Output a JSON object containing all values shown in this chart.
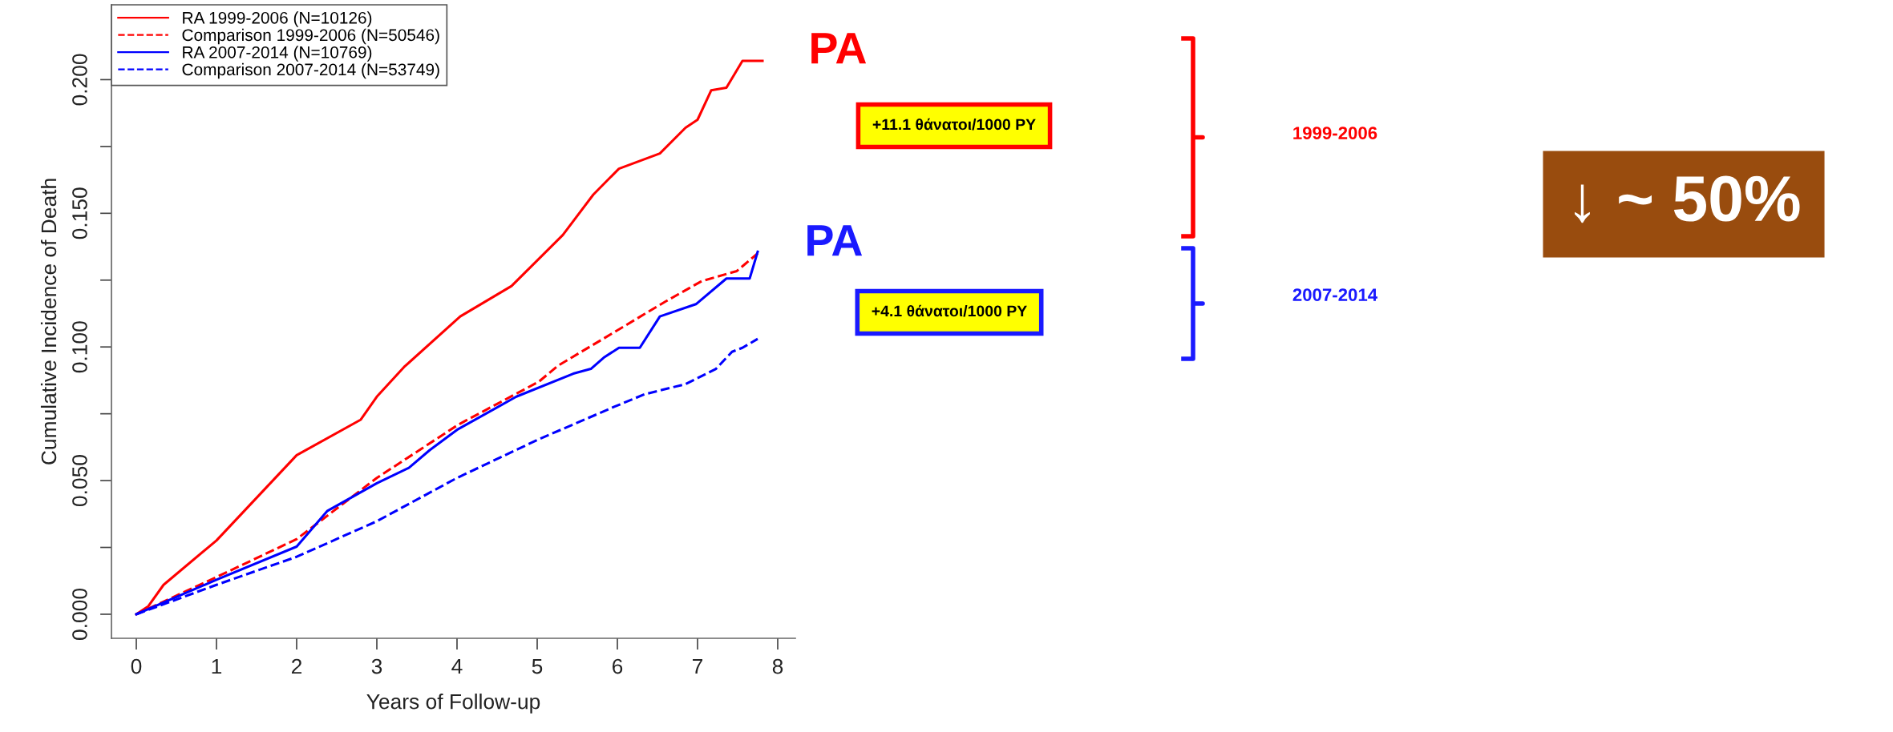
{
  "chart_data": {
    "type": "line",
    "xlabel": "Years of Follow-up",
    "ylabel": "Cumulative Incidence of Death",
    "xlim": [
      -0.31,
      8.22
    ],
    "ylim": [
      -0.009,
      0.228
    ],
    "xticks": [
      0,
      1,
      2,
      3,
      4,
      5,
      6,
      7,
      8
    ],
    "yticks": [
      {
        "value": 0,
        "label": "0.000"
      },
      {
        "value": 0.025,
        "label": null
      },
      {
        "value": 0.05,
        "label": "0.050"
      },
      {
        "value": 0.075,
        "label": null
      },
      {
        "value": 0.1,
        "label": "0.100"
      },
      {
        "value": 0.125,
        "label": null
      },
      {
        "value": 0.15,
        "label": "0.150"
      },
      {
        "value": 0.175,
        "label": null
      },
      {
        "value": 0.2,
        "label": "0.200"
      }
    ],
    "legend": "top left",
    "series": [
      {
        "name": "RA 1999-2006 (N=10126)",
        "color": "#ff0000",
        "line_style": "solid",
        "x": [
          0,
          0.15,
          0.34,
          1,
          2,
          2.8,
          3,
          3.34,
          4.04,
          4.68,
          5.32,
          5.7,
          6.02,
          6.53,
          6.85,
          7.0,
          7.17,
          7.36,
          7.56,
          7.81
        ],
        "values": [
          0,
          0.003,
          0.011,
          0.0276,
          0.0595,
          0.0728,
          0.0814,
          0.0925,
          0.1114,
          0.1228,
          0.1419,
          0.157,
          0.1667,
          0.1724,
          0.182,
          0.185,
          0.196,
          0.197,
          0.207,
          0.207
        ]
      },
      {
        "name": "Comparison 1999-2006 (N=50546)",
        "color": "#ff0000",
        "line_style": "dashed",
        "x": [
          0,
          1,
          2,
          3,
          4.02,
          5.02,
          5.26,
          5.96,
          6.6,
          7.05,
          7.49,
          7.75
        ],
        "values": [
          0,
          0.0139,
          0.0281,
          0.051,
          0.071,
          0.087,
          0.093,
          0.1055,
          0.117,
          0.1246,
          0.1284,
          0.135
        ]
      },
      {
        "name": "RA 2007-2014 (N=10769)",
        "color": "#0000ff",
        "line_style": "solid",
        "x": [
          0,
          1,
          2,
          2.38,
          3,
          3.4,
          3.66,
          4,
          4.74,
          5.45,
          5.67,
          5.83,
          6.02,
          6.28,
          6.53,
          6.98,
          7.36,
          7.65,
          7.75
        ],
        "values": [
          0,
          0.0129,
          0.0253,
          0.0386,
          0.049,
          0.0548,
          0.0614,
          0.069,
          0.0814,
          0.09,
          0.0918,
          0.096,
          0.0997,
          0.0997,
          0.1114,
          0.116,
          0.1256,
          0.1256,
          0.1356
        ]
      },
      {
        "name": "Comparison 2007-2014 (N=53749)",
        "color": "#0000ff",
        "line_style": "dashed",
        "x": [
          0,
          1,
          2,
          3,
          4,
          5,
          5.96,
          6.34,
          6.85,
          7.23,
          7.43,
          7.56,
          7.75
        ],
        "values": [
          0,
          0.011,
          0.0215,
          0.0348,
          0.051,
          0.0652,
          0.0776,
          0.0823,
          0.0861,
          0.0918,
          0.0982,
          0.0997,
          0.103
        ]
      }
    ],
    "annotations": [
      "PA",
      "+11.1 θάνατοι/1000 PY",
      "PA",
      "+4.1 θάνατοι/1000 PY",
      "1999-2006",
      "2007-2014",
      "↓ ~ 50%"
    ]
  }
}
